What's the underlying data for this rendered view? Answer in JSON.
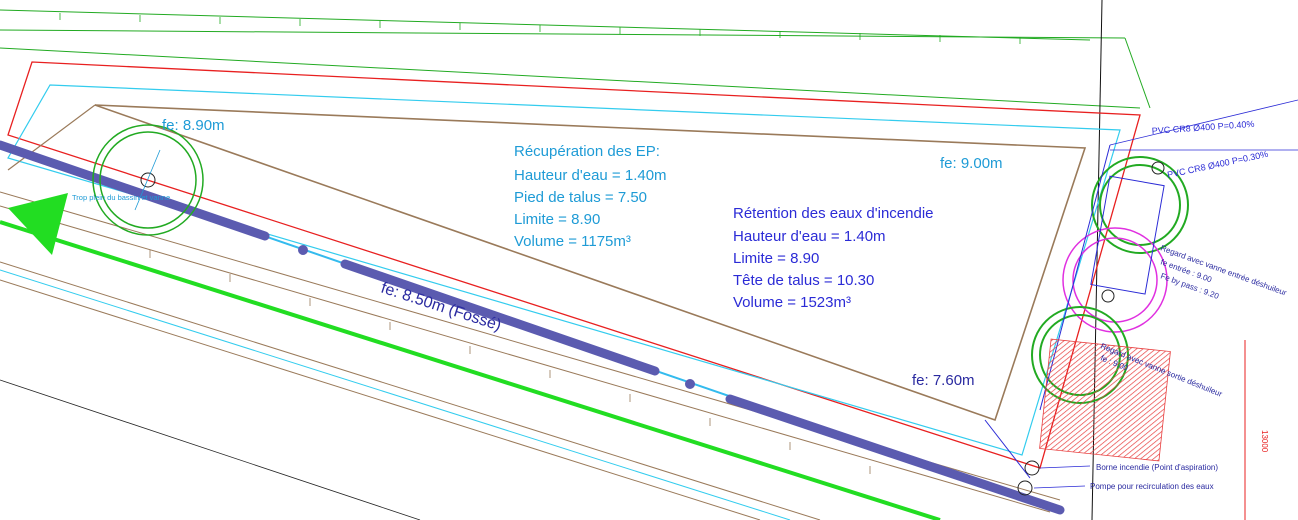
{
  "colors": {
    "cyan": "#1e9bd6",
    "blue": "#2b2bd6",
    "pipe": "#5b5bb0",
    "green": "#22dd22",
    "red": "#e82020",
    "brown": "#9a7a5a",
    "magenta": "#e030e0",
    "hatch": "#e84040"
  },
  "labels": {
    "fe_top_left": "fe: 8.90m",
    "fe_top_right": "fe: 9.00m",
    "fe_bottom_right": "fe: 7.60m",
    "fe_ditch": "fe: 8.50m (Fossé)",
    "trop_plein": "Trop plein du bassin et vanne"
  },
  "ep_block": {
    "title": "Récupération des EP:",
    "line1": "Hauteur d'eau = 1.40m",
    "line2": "Pied de talus = 7.50",
    "line3": "Limite = 8.90",
    "line4": "Volume = 1175m³"
  },
  "incendie_block": {
    "title": "Rétention des eaux d'incendie",
    "line1": "Hauteur d'eau = 1.40m",
    "line2": "Limite = 8.90",
    "line3": "Tête de talus = 10.30",
    "line4": "Volume = 1523m³"
  },
  "pipes": {
    "pvc1": "PVC CR8 Ø400 P=0.40%",
    "pvc2": "PVC CR8 Ø400 P=0.30%"
  },
  "annotations": {
    "regard_entree": "Regard avec vanne entrée déshuileur",
    "fe_entree": "fe entrée : 9.00",
    "fe_bypass": "Fe by pass : 9.20",
    "regard_sortie": "Regard avec vanne sortie déshuileur",
    "fe_sortie": "fe : 9.00",
    "borne": "Borne incendie (Point d'aspiration)",
    "pompe": "Pompe pour recirculation des eaux",
    "side_code": "13000"
  }
}
